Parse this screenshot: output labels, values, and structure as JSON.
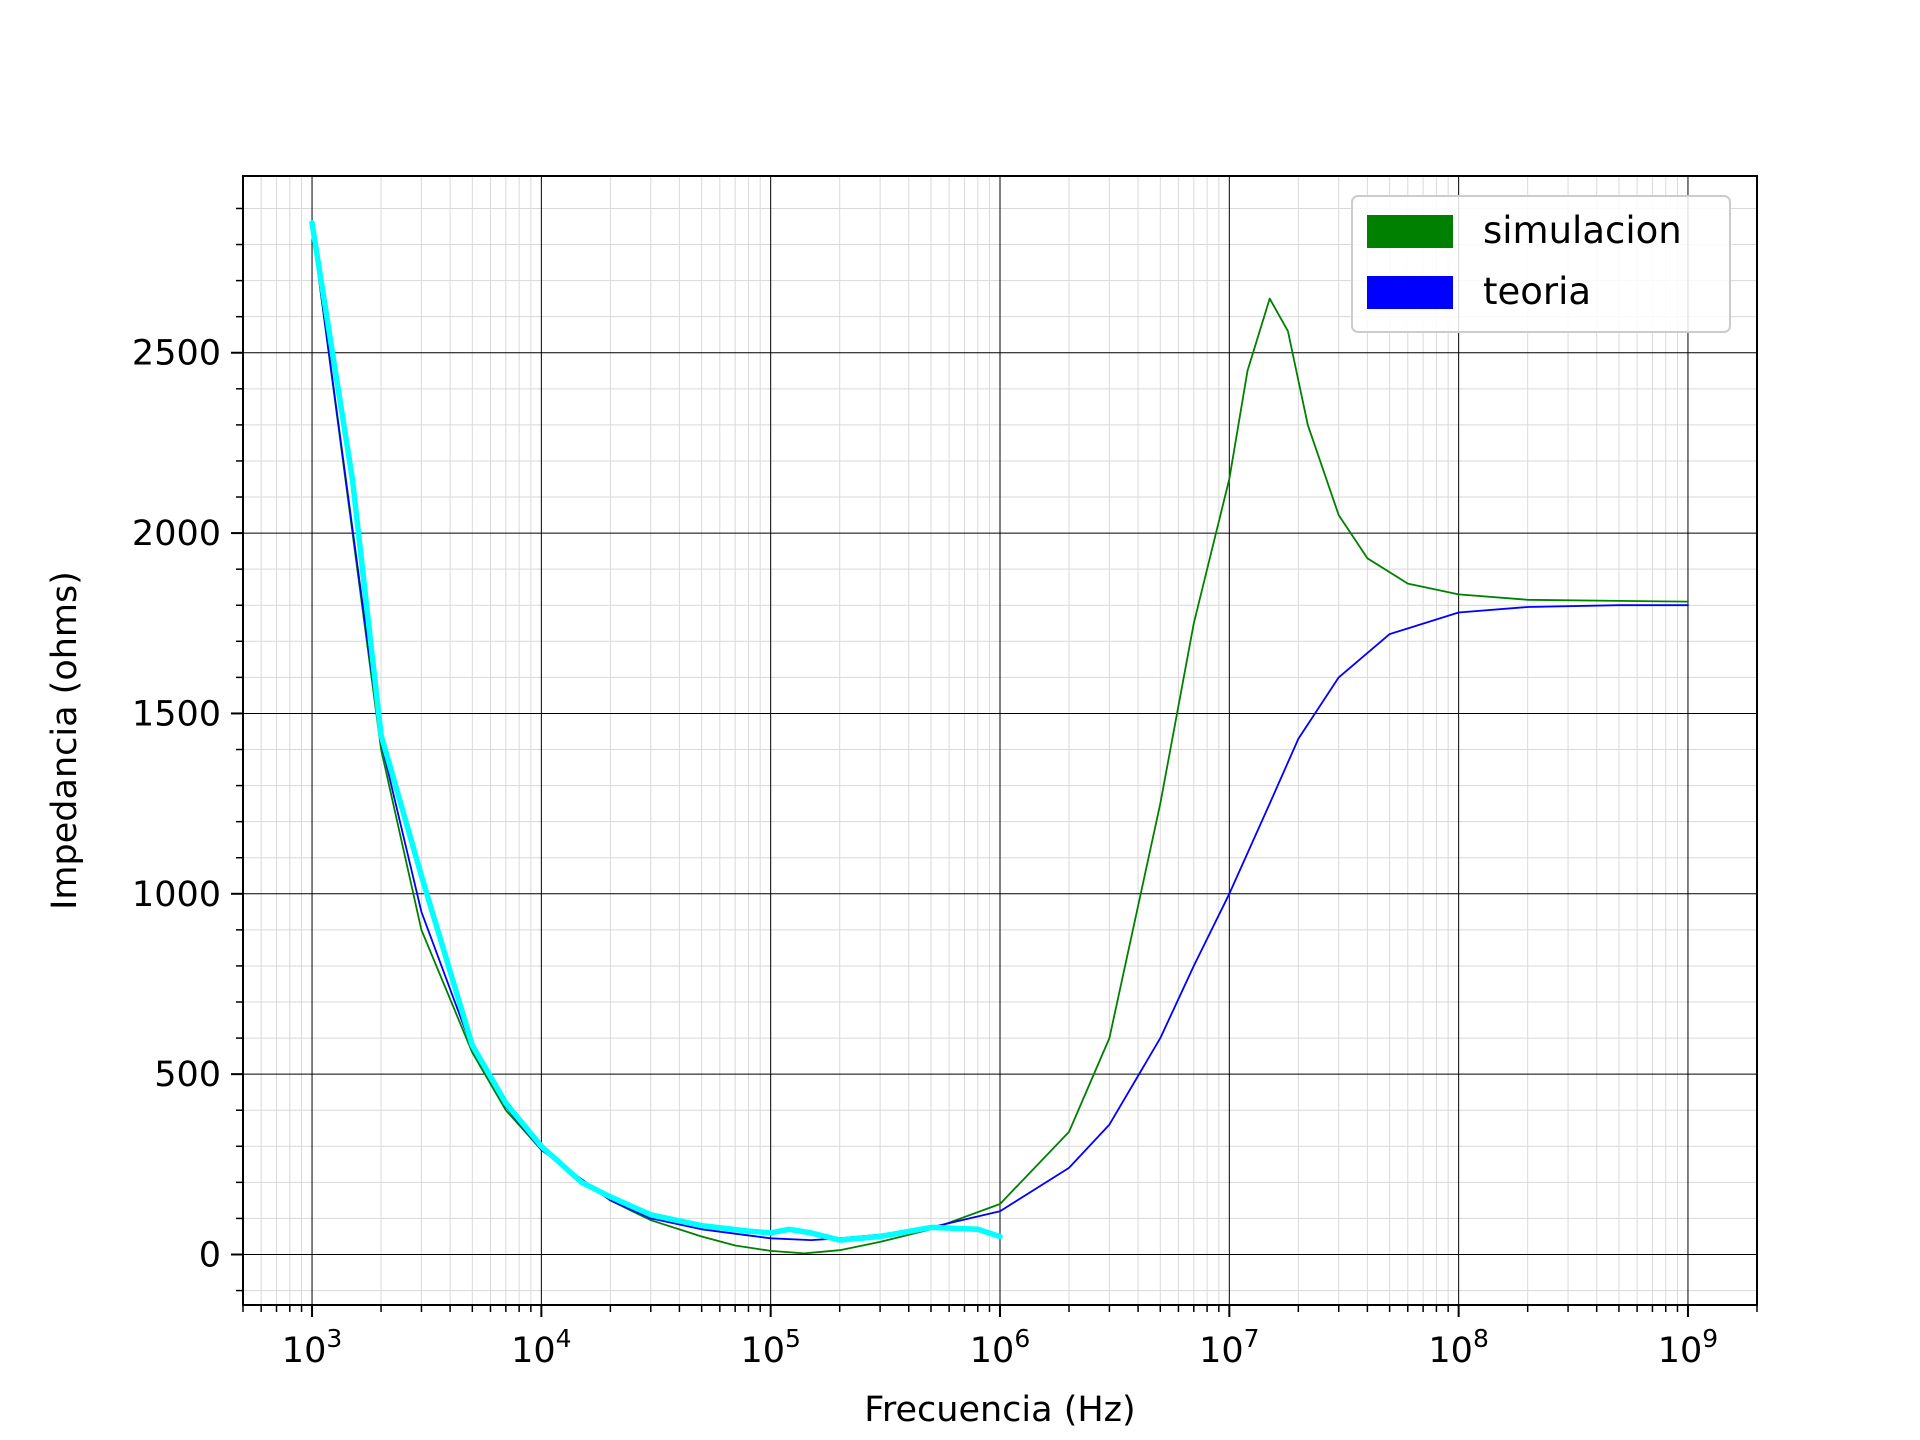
{
  "chart_data": {
    "type": "line",
    "xlabel": "Frecuencia (Hz)",
    "ylabel": "Impedancia (ohms)",
    "xscale": "log",
    "xlim": [
      500,
      2000000000
    ],
    "ylim": [
      -140,
      2990
    ],
    "xticks": [
      1000,
      10000,
      100000,
      1000000,
      10000000,
      100000000,
      1000000000
    ],
    "xtick_labels": [
      {
        "base": "10",
        "exp": "3"
      },
      {
        "base": "10",
        "exp": "4"
      },
      {
        "base": "10",
        "exp": "5"
      },
      {
        "base": "10",
        "exp": "6"
      },
      {
        "base": "10",
        "exp": "7"
      },
      {
        "base": "10",
        "exp": "8"
      },
      {
        "base": "10",
        "exp": "9"
      }
    ],
    "yticks": [
      0,
      500,
      1000,
      1500,
      2000,
      2500
    ],
    "ytick_labels": [
      "0",
      "500",
      "1000",
      "1500",
      "2000",
      "2500"
    ],
    "grid": true,
    "legend_position": "top-right",
    "legend": [
      {
        "label": "simulacion",
        "color": "#008000"
      },
      {
        "label": "teoria",
        "color": "#0000ff"
      }
    ],
    "series": [
      {
        "name": "simulacion",
        "color": "#008000",
        "points": [
          [
            1000,
            2850
          ],
          [
            2000,
            1400
          ],
          [
            3000,
            900
          ],
          [
            5000,
            560
          ],
          [
            7000,
            400
          ],
          [
            10000,
            290
          ],
          [
            20000,
            150
          ],
          [
            30000,
            95
          ],
          [
            50000,
            50
          ],
          [
            70000,
            25
          ],
          [
            100000,
            10
          ],
          [
            140000,
            3
          ],
          [
            200000,
            12
          ],
          [
            300000,
            35
          ],
          [
            500000,
            70
          ],
          [
            1000000,
            140
          ],
          [
            2000000,
            340
          ],
          [
            3000000,
            600
          ],
          [
            5000000,
            1250
          ],
          [
            7000000,
            1750
          ],
          [
            10000000,
            2150
          ],
          [
            12000000,
            2450
          ],
          [
            15000000,
            2650
          ],
          [
            18000000,
            2560
          ],
          [
            22000000,
            2300
          ],
          [
            30000000,
            2050
          ],
          [
            40000000,
            1930
          ],
          [
            60000000,
            1860
          ],
          [
            100000000,
            1830
          ],
          [
            200000000,
            1815
          ],
          [
            500000000,
            1812
          ],
          [
            1000000000,
            1810
          ]
        ]
      },
      {
        "name": "teoria",
        "color": "#0000ff",
        "points": [
          [
            1000,
            2850
          ],
          [
            2000,
            1420
          ],
          [
            3000,
            950
          ],
          [
            5000,
            570
          ],
          [
            7000,
            410
          ],
          [
            10000,
            290
          ],
          [
            20000,
            150
          ],
          [
            30000,
            100
          ],
          [
            50000,
            70
          ],
          [
            100000,
            45
          ],
          [
            150000,
            40
          ],
          [
            200000,
            45
          ],
          [
            300000,
            55
          ],
          [
            500000,
            75
          ],
          [
            1000000,
            120
          ],
          [
            2000000,
            240
          ],
          [
            3000000,
            360
          ],
          [
            5000000,
            600
          ],
          [
            7000000,
            800
          ],
          [
            10000000,
            1000
          ],
          [
            15000000,
            1250
          ],
          [
            20000000,
            1430
          ],
          [
            30000000,
            1600
          ],
          [
            50000000,
            1720
          ],
          [
            100000000,
            1780
          ],
          [
            200000000,
            1795
          ],
          [
            500000000,
            1800
          ],
          [
            1000000000,
            1800
          ]
        ]
      },
      {
        "name": "",
        "color": "#00ffff",
        "points": [
          [
            1000,
            2860
          ],
          [
            1500,
            2150
          ],
          [
            2000,
            1440
          ],
          [
            3000,
            1050
          ],
          [
            5000,
            580
          ],
          [
            7000,
            420
          ],
          [
            10000,
            300
          ],
          [
            15000,
            200
          ],
          [
            20000,
            160
          ],
          [
            30000,
            110
          ],
          [
            50000,
            80
          ],
          [
            80000,
            65
          ],
          [
            100000,
            60
          ],
          [
            120000,
            70
          ],
          [
            150000,
            60
          ],
          [
            200000,
            40
          ],
          [
            300000,
            50
          ],
          [
            500000,
            75
          ],
          [
            800000,
            70
          ],
          [
            1000000,
            50
          ]
        ]
      }
    ]
  }
}
